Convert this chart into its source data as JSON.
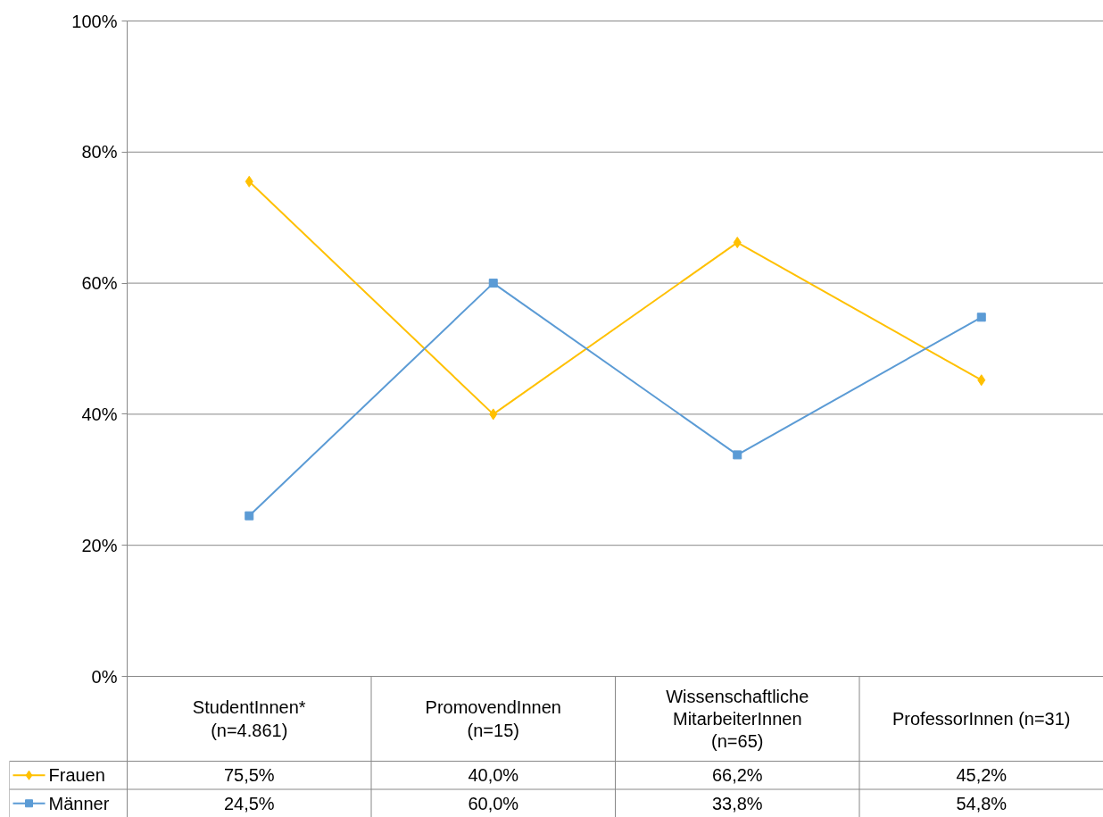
{
  "chart_data": {
    "type": "line",
    "categories": [
      "StudentInnen*\n(n=4.861)",
      "PromovendInnen\n(n=15)",
      "Wissenschaftliche\nMitarbeiterInnen\n(n=65)",
      "ProfessorInnen (n=31)"
    ],
    "series": [
      {
        "name": "Frauen",
        "color": "#ffc000",
        "marker": "diamond",
        "values": [
          75.5,
          40.0,
          66.2,
          45.2
        ],
        "value_labels": [
          "75,5%",
          "40,0%",
          "66,2%",
          "45,2%"
        ]
      },
      {
        "name": "Männer",
        "color": "#5b9bd5",
        "marker": "square",
        "values": [
          24.5,
          60.0,
          33.8,
          54.8
        ],
        "value_labels": [
          "24,5%",
          "60,0%",
          "33,8%",
          "54,8%"
        ]
      }
    ],
    "ylim": [
      0,
      100
    ],
    "yticks": [
      {
        "value": 0,
        "label": "0%"
      },
      {
        "value": 20,
        "label": "20%"
      },
      {
        "value": 40,
        "label": "40%"
      },
      {
        "value": 60,
        "label": "60%"
      },
      {
        "value": 80,
        "label": "80%"
      },
      {
        "value": 100,
        "label": "100%"
      }
    ],
    "grid": "y",
    "legend": "bottom left"
  }
}
